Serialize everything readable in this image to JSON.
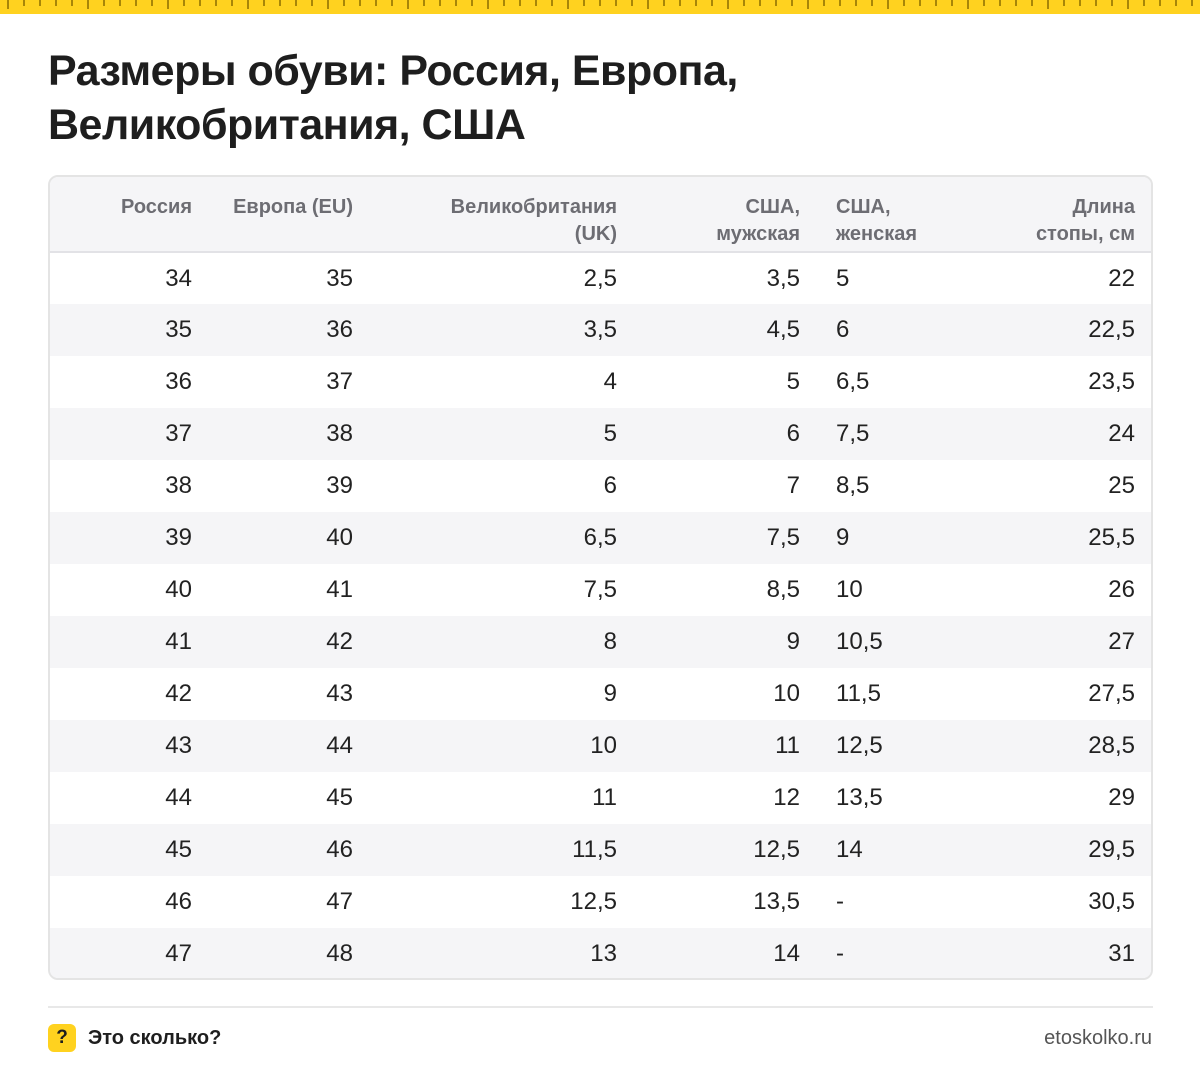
{
  "title": "Размеры обуви: Россия, Европа, Великобритания, США",
  "colors": {
    "accent": "#ffd21f",
    "header_bg": "#f5f5f7",
    "header_text": "#6d6d73"
  },
  "table": {
    "headers": [
      {
        "line1": "Россия",
        "line2": ""
      },
      {
        "line1": "Европа (EU)",
        "line2": ""
      },
      {
        "line1": "Великобритания",
        "line2": "(UK)"
      },
      {
        "line1": "США,",
        "line2": "мужская"
      },
      {
        "line1": "США,",
        "line2": "женская"
      },
      {
        "line1": "Длина",
        "line2": "стопы, см"
      }
    ],
    "rows": [
      [
        "34",
        "35",
        "2,5",
        "3,5",
        "5",
        "22"
      ],
      [
        "35",
        "36",
        "3,5",
        "4,5",
        "6",
        "22,5"
      ],
      [
        "36",
        "37",
        "4",
        "5",
        "6,5",
        "23,5"
      ],
      [
        "37",
        "38",
        "5",
        "6",
        "7,5",
        "24"
      ],
      [
        "38",
        "39",
        "6",
        "7",
        "8,5",
        "25"
      ],
      [
        "39",
        "40",
        "6,5",
        "7,5",
        "9",
        "25,5"
      ],
      [
        "40",
        "41",
        "7,5",
        "8,5",
        "10",
        "26"
      ],
      [
        "41",
        "42",
        "8",
        "9",
        "10,5",
        "27"
      ],
      [
        "42",
        "43",
        "9",
        "10",
        "11,5",
        "27,5"
      ],
      [
        "43",
        "44",
        "10",
        "11",
        "12,5",
        "28,5"
      ],
      [
        "44",
        "45",
        "11",
        "12",
        "13,5",
        "29"
      ],
      [
        "45",
        "46",
        "11,5",
        "12,5",
        "14",
        "29,5"
      ],
      [
        "46",
        "47",
        "12,5",
        "13,5",
        "-",
        "30,5"
      ],
      [
        "47",
        "48",
        "13",
        "14",
        "-",
        "31"
      ]
    ]
  },
  "footer": {
    "badge": "?",
    "brand": "Это сколько?",
    "site": "etoskolko.ru"
  }
}
